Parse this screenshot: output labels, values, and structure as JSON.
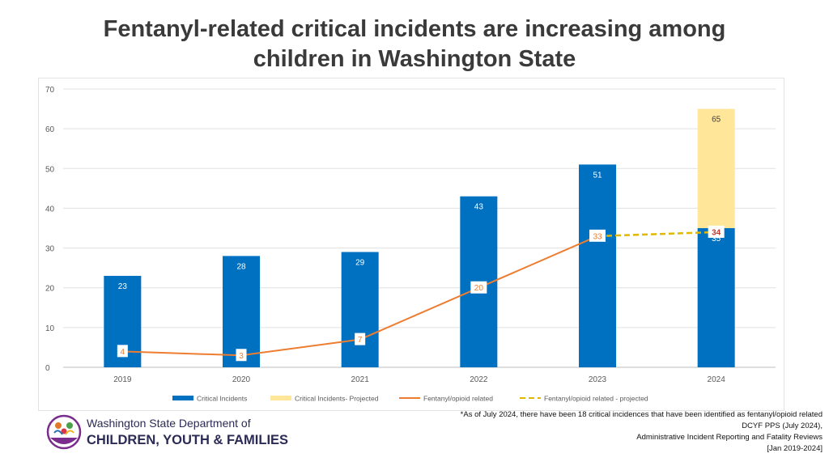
{
  "title": {
    "line1": "Fentanyl-related critical incidents are increasing among",
    "line2": "children in Washington State"
  },
  "chart_data": {
    "type": "bar",
    "categories": [
      "2019",
      "2020",
      "2021",
      "2022",
      "2023",
      "2024"
    ],
    "series": [
      {
        "name": "Critical Incidents",
        "kind": "bar",
        "color": "#0070c0",
        "values": [
          23,
          28,
          29,
          43,
          51,
          35
        ]
      },
      {
        "name": "Critical Incidents- Projected",
        "kind": "bar-stacked-total",
        "color": "#ffe699",
        "values": [
          null,
          null,
          null,
          null,
          null,
          65
        ]
      },
      {
        "name": "Fentanyl/opioid related",
        "kind": "line",
        "color": "#ed7d31",
        "values": [
          4,
          3,
          7,
          20,
          33,
          null
        ]
      },
      {
        "name": "Fentanyl/opioid related - projected",
        "kind": "line-dashed",
        "color": "#e0b800",
        "values": [
          null,
          null,
          null,
          null,
          33,
          34
        ]
      }
    ],
    "ylim": [
      0,
      70
    ],
    "yticks": [
      "0",
      "10",
      "20",
      "30",
      "40",
      "50",
      "60",
      "70"
    ],
    "grid": true,
    "legend": "bottom"
  },
  "footnote": {
    "line1": "*As of July 2024, there have been 18 critical incidences that have been identified as fentanyl/opioid related",
    "line2": "DCYF PPS (July 2024),",
    "line3": "Administrative Incident Reporting and Fatality Reviews",
    "line4": "[Jan 2019-2024]"
  },
  "logo": {
    "line1": "Washington State Department of",
    "line2": "CHILDREN, YOUTH & FAMILIES"
  }
}
